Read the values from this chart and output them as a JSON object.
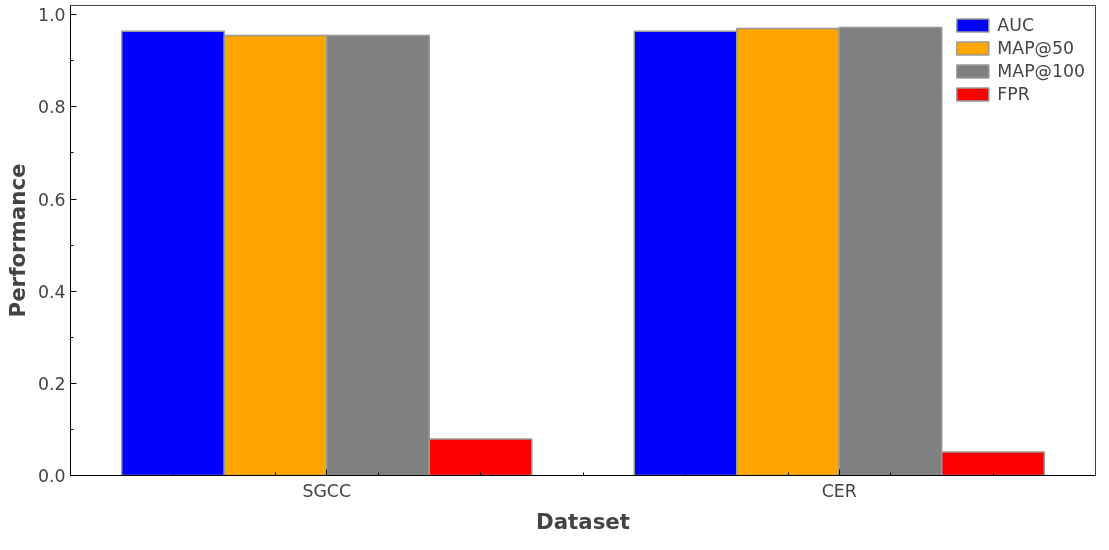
{
  "chart_data": {
    "type": "bar",
    "xlabel": "Dataset",
    "ylabel": "Performance",
    "categories": [
      "SGCC",
      "CER"
    ],
    "series": [
      {
        "name": "AUC",
        "color": "#0000ff",
        "values": [
          0.964,
          0.964
        ]
      },
      {
        "name": "MAP@50",
        "color": "#ffa500",
        "values": [
          0.955,
          0.97
        ]
      },
      {
        "name": "MAP@100",
        "color": "#808080",
        "values": [
          0.955,
          0.972
        ]
      },
      {
        "name": "FPR",
        "color": "#ff0000",
        "values": [
          0.079,
          0.051
        ]
      }
    ],
    "ylim": [
      0,
      1.02
    ],
    "yticks": [
      {
        "value": 0,
        "label": "0.0"
      },
      0.2,
      0.4,
      0.6,
      0.8,
      {
        "value": 1,
        "label": "1.0"
      }
    ],
    "grid": false,
    "legend": "top right"
  }
}
